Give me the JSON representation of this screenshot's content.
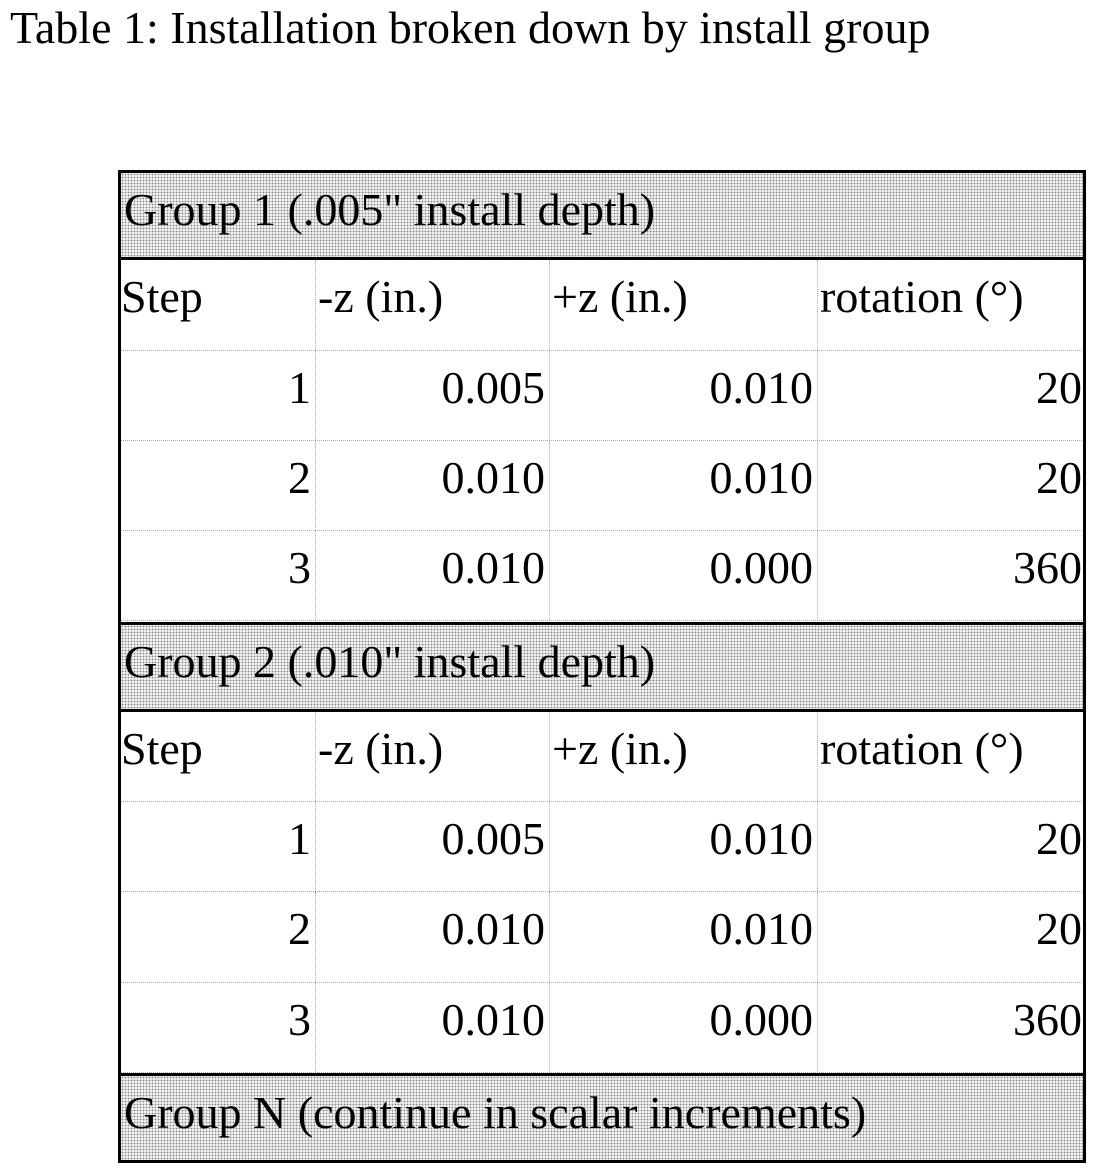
{
  "title": "Table 1: Installation broken down by install group",
  "table": {
    "groups": [
      {
        "heading": "Group 1 (.005\" install depth)",
        "columns": [
          "Step",
          "-z (in.)",
          "+z (in.)",
          "rotation (°)"
        ],
        "rows": [
          [
            "1",
            "0.005",
            "0.010",
            "20"
          ],
          [
            "2",
            "0.010",
            "0.010",
            "20"
          ],
          [
            "3",
            "0.010",
            "0.000",
            "360"
          ]
        ]
      },
      {
        "heading": "Group 2 (.010\" install depth)",
        "columns": [
          "Step",
          "-z (in.)",
          "+z (in.)",
          "rotation (°)"
        ],
        "rows": [
          [
            "1",
            "0.005",
            "0.010",
            "20"
          ],
          [
            "2",
            "0.010",
            "0.010",
            "20"
          ],
          [
            "3",
            "0.010",
            "0.000",
            "360"
          ]
        ]
      },
      {
        "heading": "Group N (continue in scalar increments)"
      }
    ]
  }
}
